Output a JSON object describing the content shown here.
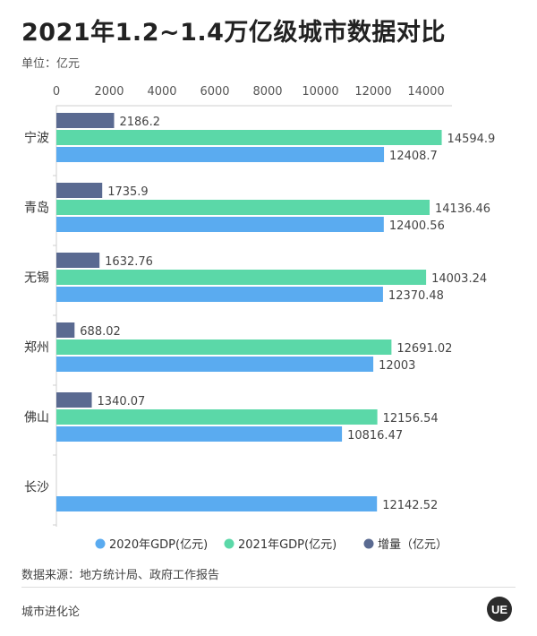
{
  "header": {
    "title": "2021年1.2~1.4万亿级城市数据对比",
    "unit": "单位：亿元"
  },
  "footer": {
    "source": "数据来源：地方统计局、政府工作报告",
    "brand": "城市进化论",
    "logo_text": "UE"
  },
  "colors": {
    "gdp2020": "#5aabf0",
    "gdp2021": "#5bd8a8",
    "increase": "#5a6a91"
  },
  "chart_data": {
    "type": "bar",
    "orientation": "horizontal",
    "title": "2021年1.2~1.4万亿级城市数据对比",
    "unit": "单位：亿元",
    "categories": [
      "宁波",
      "青岛",
      "无锡",
      "郑州",
      "佛山",
      "长沙"
    ],
    "series": [
      {
        "name": "增量（亿元）",
        "key": "increase",
        "values": [
          2186.2,
          1735.9,
          1632.76,
          688.02,
          1340.07,
          null
        ],
        "labels": [
          "2186.2",
          "1735.9",
          "1632.76",
          "688.02",
          "1340.07",
          ""
        ]
      },
      {
        "name": "2021年GDP(亿元)",
        "key": "gdp2021",
        "values": [
          14594.9,
          14136.46,
          14003.24,
          12691.02,
          12156.54,
          null
        ],
        "labels": [
          "14594.9",
          "14136.46",
          "14003.24",
          "12691.02",
          "12156.54",
          ""
        ]
      },
      {
        "name": "2020年GDP(亿元)",
        "key": "gdp2020",
        "values": [
          12408.7,
          12400.56,
          12370.48,
          12003,
          10816.47,
          12142.52
        ],
        "labels": [
          "12408.7",
          "12400.56",
          "12370.48",
          "12003",
          "10816.47",
          "12142.52"
        ]
      }
    ],
    "legend_order": [
      "gdp2020",
      "gdp2021",
      "increase"
    ],
    "x_ticks": [
      "0",
      "2000",
      "4000",
      "6000",
      "8000",
      "10000",
      "12000",
      "14000"
    ],
    "xlim": [
      0,
      16000
    ],
    "axis_position": "top",
    "legend_position": "bottom",
    "grid": false
  }
}
